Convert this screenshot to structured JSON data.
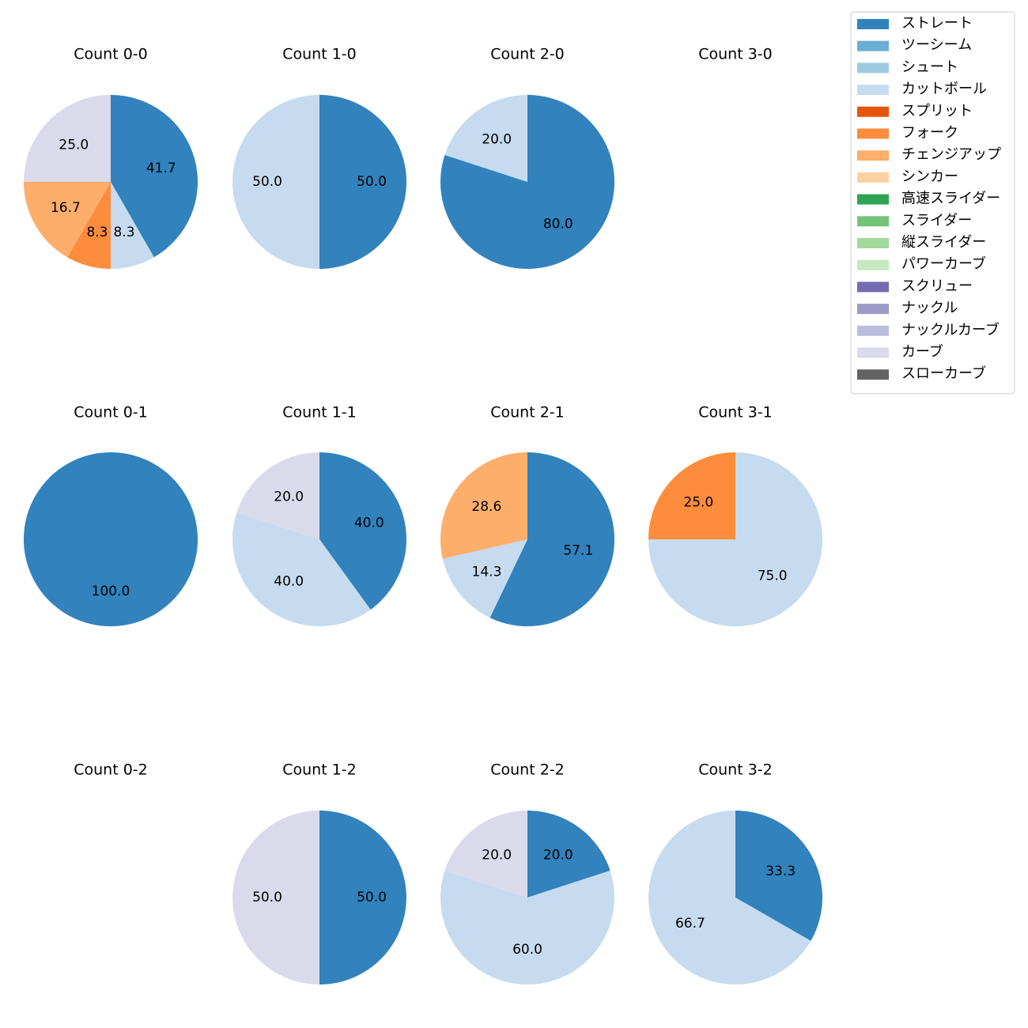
{
  "chart_data": {
    "type": "pie",
    "legend": {
      "placement": "top-right",
      "entries": [
        {
          "name": "ストレート",
          "color": "#3182bd"
        },
        {
          "name": "ツーシーム",
          "color": "#6baed6"
        },
        {
          "name": "シュート",
          "color": "#9ecae1"
        },
        {
          "name": "カットボール",
          "color": "#c6dbef"
        },
        {
          "name": "スプリット",
          "color": "#e6550d"
        },
        {
          "name": "フォーク",
          "color": "#fd8d3c"
        },
        {
          "name": "チェンジアップ",
          "color": "#fdae6b"
        },
        {
          "name": "シンカー",
          "color": "#fdd0a2"
        },
        {
          "name": "高速スライダー",
          "color": "#31a354"
        },
        {
          "name": "スライダー",
          "color": "#74c476"
        },
        {
          "name": "縦スライダー",
          "color": "#a1d99b"
        },
        {
          "name": "パワーカーブ",
          "color": "#c7e9c0"
        },
        {
          "name": "スクリュー",
          "color": "#756bb1"
        },
        {
          "name": "ナックル",
          "color": "#9e9ac8"
        },
        {
          "name": "ナックルカーブ",
          "color": "#bcbddc"
        },
        {
          "name": "カーブ",
          "color": "#dadaeb"
        },
        {
          "name": "スローカーブ",
          "color": "#636363"
        }
      ]
    },
    "charts": [
      {
        "title": "Count 0-0",
        "slices": [
          {
            "pitch": "ストレート",
            "value": 41.7
          },
          {
            "pitch": "カットボール",
            "value": 8.3
          },
          {
            "pitch": "フォーク",
            "value": 8.3
          },
          {
            "pitch": "チェンジアップ",
            "value": 16.7
          },
          {
            "pitch": "カーブ",
            "value": 25.0
          }
        ]
      },
      {
        "title": "Count 1-0",
        "slices": [
          {
            "pitch": "ストレート",
            "value": 50.0
          },
          {
            "pitch": "カットボール",
            "value": 50.0
          }
        ]
      },
      {
        "title": "Count 2-0",
        "slices": [
          {
            "pitch": "ストレート",
            "value": 80.0
          },
          {
            "pitch": "カットボール",
            "value": 20.0
          }
        ]
      },
      {
        "title": "Count 3-0",
        "slices": []
      },
      {
        "title": "Count 0-1",
        "slices": [
          {
            "pitch": "ストレート",
            "value": 100.0
          }
        ]
      },
      {
        "title": "Count 1-1",
        "slices": [
          {
            "pitch": "ストレート",
            "value": 40.0
          },
          {
            "pitch": "カットボール",
            "value": 40.0
          },
          {
            "pitch": "カーブ",
            "value": 20.0
          }
        ]
      },
      {
        "title": "Count 2-1",
        "slices": [
          {
            "pitch": "ストレート",
            "value": 57.1
          },
          {
            "pitch": "カットボール",
            "value": 14.3
          },
          {
            "pitch": "チェンジアップ",
            "value": 28.6
          }
        ]
      },
      {
        "title": "Count 3-1",
        "slices": [
          {
            "pitch": "カットボール",
            "value": 75.0
          },
          {
            "pitch": "フォーク",
            "value": 25.0
          }
        ]
      },
      {
        "title": "Count 0-2",
        "slices": []
      },
      {
        "title": "Count 1-2",
        "slices": [
          {
            "pitch": "ストレート",
            "value": 50.0
          },
          {
            "pitch": "カーブ",
            "value": 50.0
          }
        ]
      },
      {
        "title": "Count 2-2",
        "slices": [
          {
            "pitch": "ストレート",
            "value": 20.0
          },
          {
            "pitch": "カットボール",
            "value": 60.0
          },
          {
            "pitch": "カーブ",
            "value": 20.0
          }
        ]
      },
      {
        "title": "Count 3-2",
        "slices": [
          {
            "pitch": "ストレート",
            "value": 33.3
          },
          {
            "pitch": "カットボール",
            "value": 66.7
          }
        ]
      }
    ]
  }
}
